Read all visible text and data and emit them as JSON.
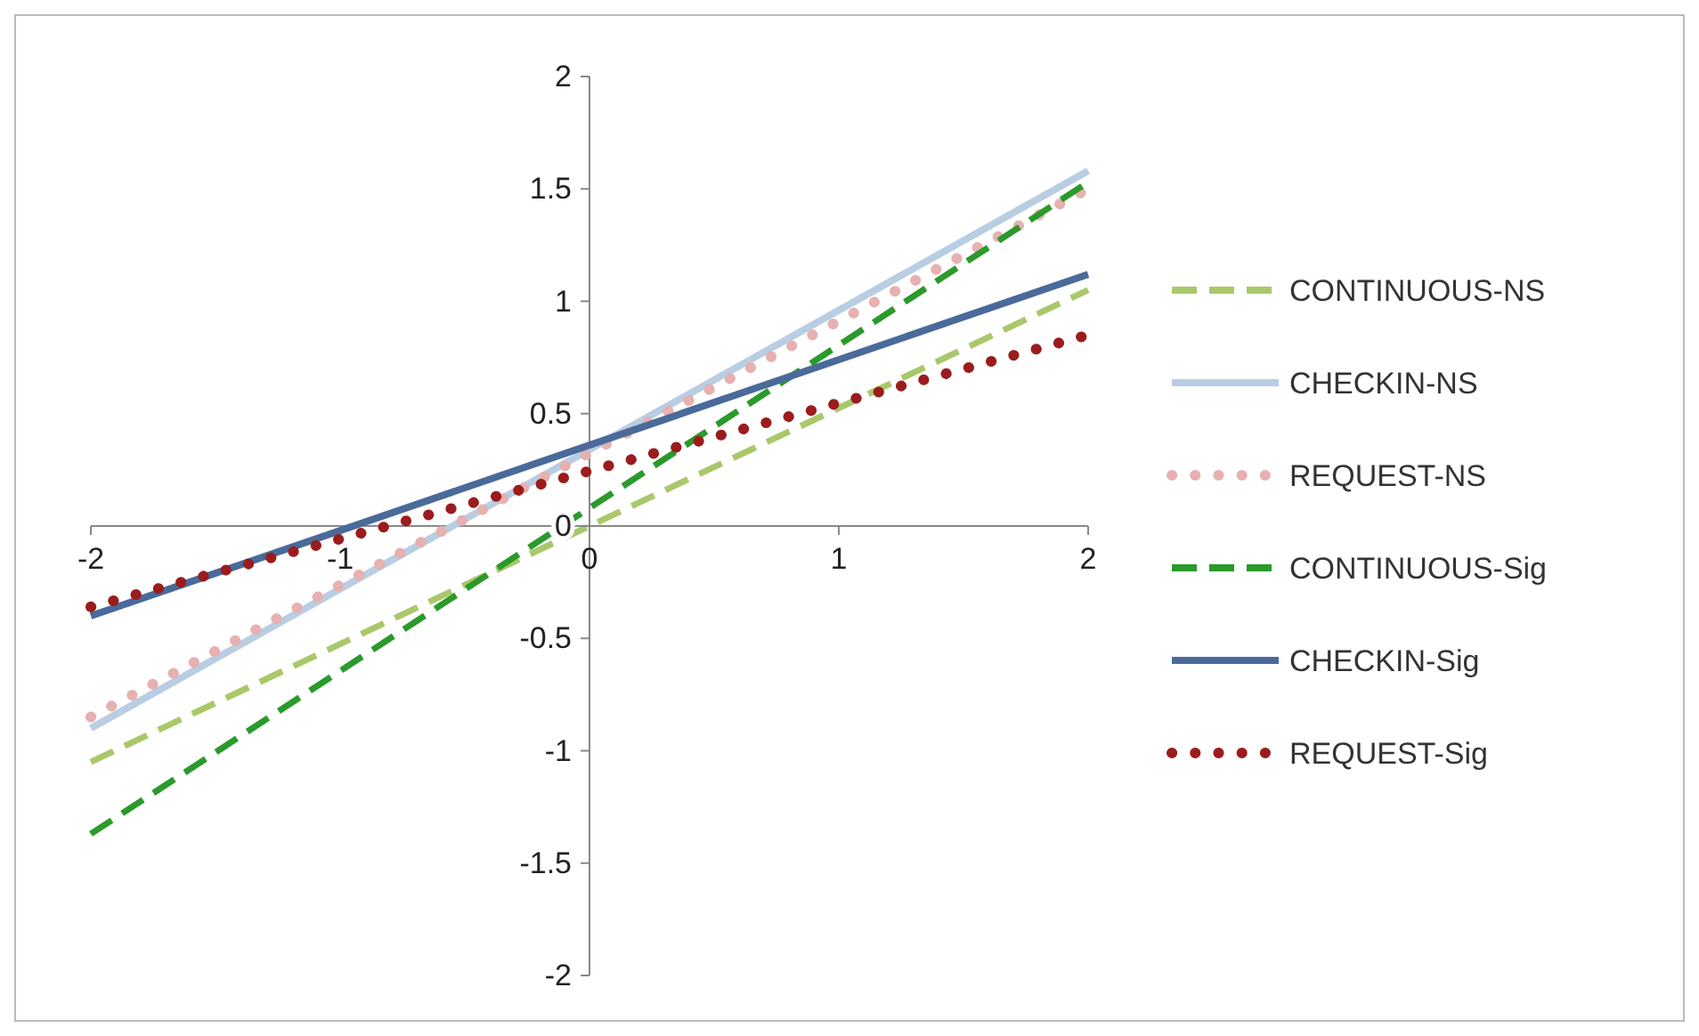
{
  "chart_data": {
    "type": "line",
    "x": [
      -2,
      2
    ],
    "xlim": [
      -2,
      2
    ],
    "ylim": [
      -2,
      2
    ],
    "xticks": [
      -2,
      -1,
      0,
      1,
      2
    ],
    "yticks": [
      -2,
      -1.5,
      -1,
      -0.5,
      0,
      0.5,
      1,
      1.5,
      2
    ],
    "legend": "right",
    "series": [
      {
        "name": "CONTINUOUS-NS",
        "color": "#a9c86a",
        "line_style": "dashed",
        "values": [
          -1.05,
          1.05
        ]
      },
      {
        "name": "CHECKIN-NS",
        "color": "#b9cde3",
        "line_style": "solid",
        "values": [
          -0.9,
          1.58
        ]
      },
      {
        "name": "REQUEST-NS",
        "color": "#e6b1b0",
        "line_style": "dotted",
        "values": [
          -0.85,
          1.5
        ]
      },
      {
        "name": "CONTINUOUS-Sig",
        "color": "#2a9a2a",
        "line_style": "dashed",
        "values": [
          -1.37,
          1.53
        ]
      },
      {
        "name": "CHECKIN-Sig",
        "color": "#4a6a9a",
        "line_style": "solid",
        "values": [
          -0.4,
          1.12
        ]
      },
      {
        "name": "REQUEST-Sig",
        "color": "#9b1c1c",
        "line_style": "dotted",
        "values": [
          -0.36,
          0.85
        ]
      }
    ]
  }
}
